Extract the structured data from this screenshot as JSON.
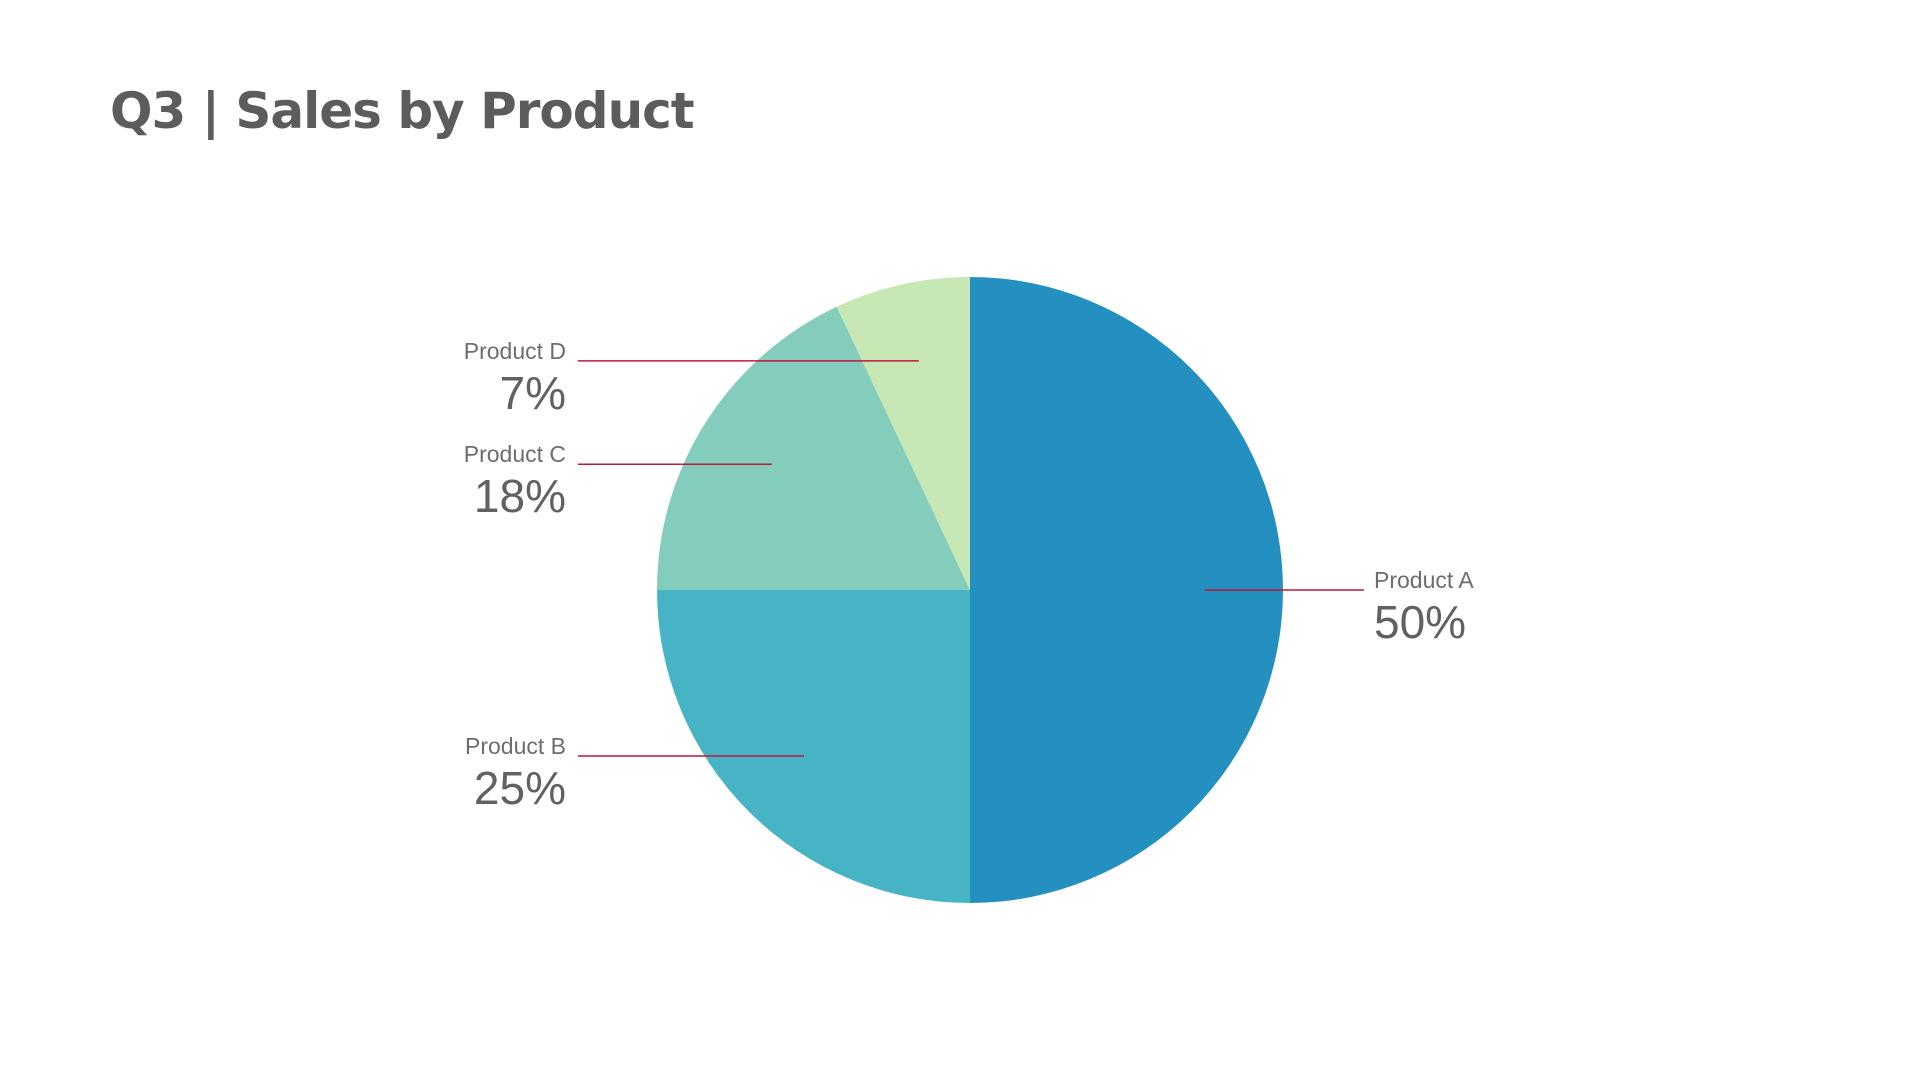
{
  "chart_data": {
    "type": "pie",
    "title": "Q3 | Sales by Product",
    "slices": [
      {
        "label": "Product A",
        "value": 50,
        "display": "50%",
        "color": "#2490bf",
        "start_deg": 0,
        "label_side": "right"
      },
      {
        "label": "Product B",
        "value": 25,
        "display": "25%",
        "color": "#46b4c4",
        "start_deg": 180,
        "label_side": "left"
      },
      {
        "label": "Product C",
        "value": 18,
        "display": "18%",
        "color": "#84ccbc",
        "start_deg": 270,
        "label_side": "left"
      },
      {
        "label": "Product D",
        "value": 7,
        "display": "7%",
        "color": "#c7e8b5",
        "start_deg": 334.8,
        "label_side": "left"
      }
    ],
    "leader_line_color": "#c0173d"
  }
}
